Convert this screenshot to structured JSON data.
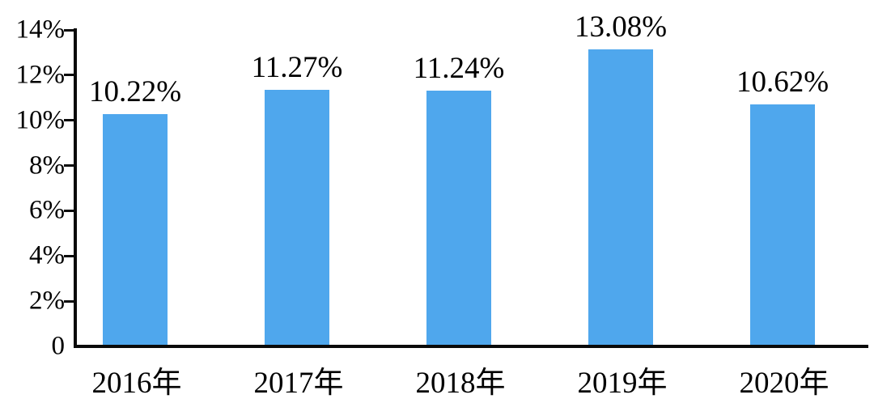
{
  "chart_data": {
    "type": "bar",
    "title": "",
    "xlabel": "",
    "ylabel": "",
    "categories": [
      "2016年",
      "2017年",
      "2018年",
      "2019年",
      "2020年"
    ],
    "values": [
      10.22,
      11.27,
      11.24,
      13.08,
      10.62
    ],
    "value_labels": [
      "10.22%",
      "11.27%",
      "11.24%",
      "13.08%",
      "10.62%"
    ],
    "y_ticks": [
      {
        "value": 0,
        "label": "0"
      },
      {
        "value": 2,
        "label": "2%"
      },
      {
        "value": 4,
        "label": "4%"
      },
      {
        "value": 6,
        "label": "6%"
      },
      {
        "value": 8,
        "label": "8%"
      },
      {
        "value": 10,
        "label": "10%"
      },
      {
        "value": 12,
        "label": "12%"
      },
      {
        "value": 14,
        "label": "14%"
      }
    ],
    "ylim": [
      0,
      14
    ],
    "grid": false,
    "legend": "none",
    "bar_color": "#4FA7ED",
    "axis_color": "#0a0a0a",
    "text_color": "#000000"
  }
}
